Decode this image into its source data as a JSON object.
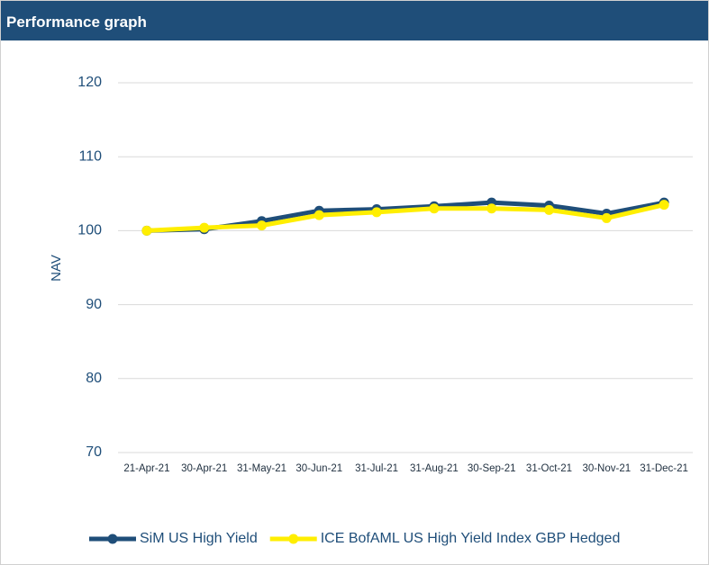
{
  "header": {
    "title": "Performance graph"
  },
  "chart_data": {
    "type": "line",
    "ylabel": "NAV",
    "categories": [
      "21-Apr-21",
      "30-Apr-21",
      "31-May-21",
      "30-Jun-21",
      "31-Jul-21",
      "31-Aug-21",
      "30-Sep-21",
      "31-Oct-21",
      "30-Nov-21",
      "31-Dec-21"
    ],
    "series": [
      {
        "name": "SiM US High Yield",
        "color": "#1f4e79",
        "values": [
          100,
          100.2,
          101.3,
          102.7,
          102.9,
          103.3,
          103.8,
          103.4,
          102.3,
          103.8
        ]
      },
      {
        "name": "ICE BofAML US High Yield Index GBP Hedged",
        "color": "#ffee00",
        "values": [
          100,
          100.4,
          100.7,
          102.1,
          102.5,
          103.0,
          103.0,
          102.8,
          101.7,
          103.5
        ]
      }
    ],
    "ylim": [
      70,
      120
    ],
    "yticks": [
      70,
      80,
      90,
      100,
      110,
      120
    ],
    "grid": true,
    "legend": "bottom"
  }
}
